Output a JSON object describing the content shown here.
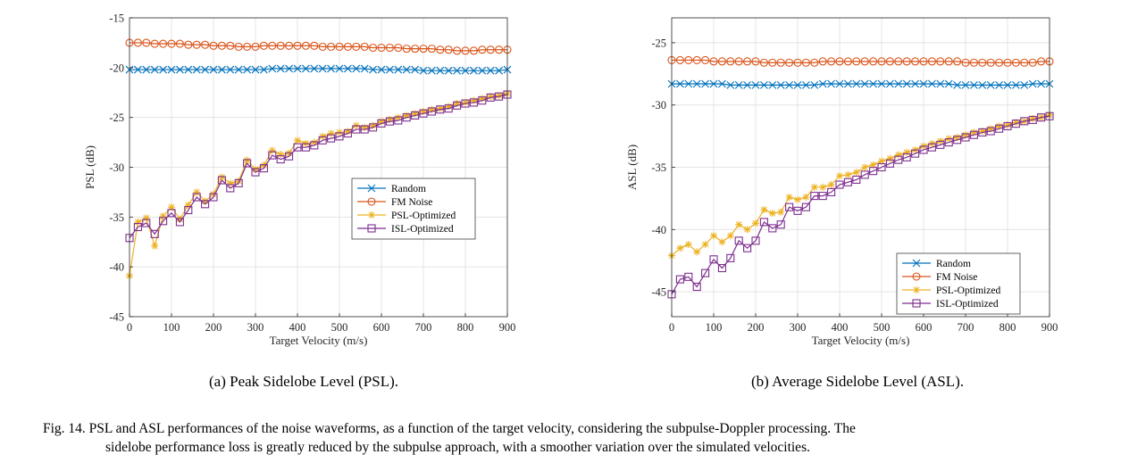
{
  "chart_data": [
    {
      "type": "line",
      "subcaption": "(a) Peak Sidelobe Level (PSL).",
      "xlabel": "Target Velocity (m/s)",
      "ylabel": "PSL (dB)",
      "xlim": [
        0,
        900
      ],
      "ylim": [
        -45,
        -15
      ],
      "xticks": [
        0,
        100,
        200,
        300,
        400,
        500,
        600,
        700,
        800,
        900
      ],
      "yticks": [
        -45,
        -40,
        -35,
        -30,
        -25,
        -20,
        -15
      ],
      "grid": true,
      "legend": "center-right",
      "x": [
        0,
        20,
        40,
        60,
        80,
        100,
        120,
        140,
        160,
        180,
        200,
        220,
        240,
        260,
        280,
        300,
        320,
        340,
        360,
        380,
        400,
        420,
        440,
        460,
        480,
        500,
        520,
        540,
        560,
        580,
        600,
        620,
        640,
        660,
        680,
        700,
        720,
        740,
        760,
        780,
        800,
        820,
        840,
        860,
        880,
        900
      ],
      "series": [
        {
          "name": "Random",
          "color": "#0072BD",
          "marker": "x",
          "values": [
            -20.2,
            -20.2,
            -20.2,
            -20.2,
            -20.2,
            -20.2,
            -20.2,
            -20.2,
            -20.2,
            -20.2,
            -20.2,
            -20.2,
            -20.2,
            -20.2,
            -20.2,
            -20.2,
            -20.2,
            -20.1,
            -20.1,
            -20.1,
            -20.1,
            -20.1,
            -20.1,
            -20.1,
            -20.1,
            -20.1,
            -20.1,
            -20.1,
            -20.1,
            -20.2,
            -20.2,
            -20.2,
            -20.2,
            -20.2,
            -20.2,
            -20.3,
            -20.3,
            -20.3,
            -20.3,
            -20.3,
            -20.3,
            -20.3,
            -20.3,
            -20.3,
            -20.3,
            -20.2
          ]
        },
        {
          "name": "FM Noise",
          "color": "#D95319",
          "marker": "o",
          "values": [
            -17.5,
            -17.5,
            -17.5,
            -17.6,
            -17.6,
            -17.6,
            -17.6,
            -17.7,
            -17.7,
            -17.7,
            -17.8,
            -17.8,
            -17.8,
            -17.9,
            -17.9,
            -17.9,
            -17.8,
            -17.8,
            -17.8,
            -17.8,
            -17.8,
            -17.8,
            -17.8,
            -17.9,
            -17.9,
            -17.9,
            -17.9,
            -17.9,
            -17.9,
            -18.0,
            -18.0,
            -18.0,
            -18.0,
            -18.1,
            -18.1,
            -18.1,
            -18.1,
            -18.2,
            -18.2,
            -18.3,
            -18.3,
            -18.3,
            -18.2,
            -18.2,
            -18.2,
            -18.2
          ]
        },
        {
          "name": "PSL-Optimized",
          "color": "#EDB120",
          "marker": "*",
          "values": [
            -40.9,
            -35.5,
            -35.1,
            -37.9,
            -34.9,
            -34.0,
            -35.2,
            -33.8,
            -32.5,
            -33.4,
            -32.7,
            -31.0,
            -31.6,
            -31.4,
            -29.3,
            -30.2,
            -29.8,
            -28.3,
            -28.7,
            -28.6,
            -27.3,
            -27.6,
            -27.5,
            -26.9,
            -26.6,
            -26.5,
            -26.4,
            -25.8,
            -26.0,
            -25.8,
            -25.4,
            -25.2,
            -25.0,
            -24.8,
            -24.6,
            -24.4,
            -24.2,
            -24.1,
            -23.9,
            -23.6,
            -23.5,
            -23.3,
            -23.1,
            -22.9,
            -22.8,
            -22.6
          ]
        },
        {
          "name": "ISL-Optimized",
          "color": "#7E2F8E",
          "marker": "s",
          "values": [
            -37.1,
            -36.0,
            -35.6,
            -36.7,
            -35.4,
            -34.6,
            -35.5,
            -34.3,
            -33.0,
            -33.7,
            -33.0,
            -31.3,
            -32.1,
            -31.6,
            -29.6,
            -30.5,
            -30.1,
            -28.8,
            -29.2,
            -28.9,
            -28.0,
            -28.0,
            -27.8,
            -27.3,
            -27.1,
            -26.9,
            -26.6,
            -26.2,
            -26.2,
            -26.0,
            -25.6,
            -25.4,
            -25.3,
            -25.0,
            -24.8,
            -24.6,
            -24.4,
            -24.2,
            -24.1,
            -23.8,
            -23.6,
            -23.5,
            -23.3,
            -23.0,
            -22.9,
            -22.7
          ]
        }
      ]
    },
    {
      "type": "line",
      "subcaption": "(b) Average Sidelobe Level (ASL).",
      "xlabel": "Target Velocity (m/s)",
      "ylabel": "ASL (dB)",
      "xlim": [
        0,
        900
      ],
      "ylim": [
        -47,
        -23
      ],
      "xticks": [
        0,
        100,
        200,
        300,
        400,
        500,
        600,
        700,
        800,
        900
      ],
      "yticks": [
        -45,
        -40,
        -35,
        -30,
        -25
      ],
      "grid": true,
      "legend": "bottom-right",
      "x": [
        0,
        20,
        40,
        60,
        80,
        100,
        120,
        140,
        160,
        180,
        200,
        220,
        240,
        260,
        280,
        300,
        320,
        340,
        360,
        380,
        400,
        420,
        440,
        460,
        480,
        500,
        520,
        540,
        560,
        580,
        600,
        620,
        640,
        660,
        680,
        700,
        720,
        740,
        760,
        780,
        800,
        820,
        840,
        860,
        880,
        900
      ],
      "series": [
        {
          "name": "Random",
          "color": "#0072BD",
          "marker": "x",
          "values": [
            -28.3,
            -28.3,
            -28.3,
            -28.3,
            -28.3,
            -28.3,
            -28.3,
            -28.4,
            -28.4,
            -28.4,
            -28.4,
            -28.4,
            -28.4,
            -28.4,
            -28.4,
            -28.4,
            -28.4,
            -28.4,
            -28.3,
            -28.3,
            -28.3,
            -28.3,
            -28.3,
            -28.3,
            -28.3,
            -28.3,
            -28.3,
            -28.3,
            -28.3,
            -28.3,
            -28.3,
            -28.3,
            -28.3,
            -28.3,
            -28.4,
            -28.4,
            -28.4,
            -28.4,
            -28.4,
            -28.4,
            -28.4,
            -28.4,
            -28.4,
            -28.3,
            -28.3,
            -28.3
          ]
        },
        {
          "name": "FM Noise",
          "color": "#D95319",
          "marker": "o",
          "values": [
            -26.4,
            -26.4,
            -26.4,
            -26.4,
            -26.4,
            -26.5,
            -26.5,
            -26.5,
            -26.5,
            -26.5,
            -26.5,
            -26.6,
            -26.6,
            -26.6,
            -26.6,
            -26.6,
            -26.6,
            -26.6,
            -26.5,
            -26.5,
            -26.5,
            -26.5,
            -26.5,
            -26.5,
            -26.5,
            -26.5,
            -26.5,
            -26.5,
            -26.5,
            -26.5,
            -26.5,
            -26.5,
            -26.5,
            -26.5,
            -26.5,
            -26.6,
            -26.6,
            -26.6,
            -26.6,
            -26.6,
            -26.6,
            -26.6,
            -26.6,
            -26.6,
            -26.5,
            -26.5
          ]
        },
        {
          "name": "PSL-Optimized",
          "color": "#EDB120",
          "marker": "*",
          "values": [
            -42.1,
            -41.5,
            -41.2,
            -41.8,
            -41.2,
            -40.5,
            -41.0,
            -40.5,
            -39.6,
            -40.0,
            -39.5,
            -38.4,
            -38.7,
            -38.6,
            -37.4,
            -37.6,
            -37.4,
            -36.6,
            -36.6,
            -36.4,
            -35.7,
            -35.6,
            -35.4,
            -35.0,
            -34.8,
            -34.5,
            -34.3,
            -34.0,
            -33.8,
            -33.6,
            -33.3,
            -33.1,
            -32.9,
            -32.7,
            -32.6,
            -32.4,
            -32.2,
            -32.1,
            -31.9,
            -31.7,
            -31.6,
            -31.4,
            -31.3,
            -31.1,
            -31.0,
            -30.8
          ]
        },
        {
          "name": "ISL-Optimized",
          "color": "#7E2F8E",
          "marker": "s",
          "values": [
            -45.2,
            -44.0,
            -43.8,
            -44.6,
            -43.5,
            -42.4,
            -43.1,
            -42.3,
            -40.9,
            -41.5,
            -40.9,
            -39.4,
            -39.9,
            -39.6,
            -38.2,
            -38.5,
            -38.2,
            -37.3,
            -37.3,
            -37.0,
            -36.4,
            -36.2,
            -36.0,
            -35.6,
            -35.3,
            -35.0,
            -34.7,
            -34.4,
            -34.2,
            -33.9,
            -33.6,
            -33.4,
            -33.2,
            -33.0,
            -32.8,
            -32.6,
            -32.4,
            -32.2,
            -32.1,
            -31.9,
            -31.7,
            -31.5,
            -31.3,
            -31.2,
            -31.0,
            -30.9
          ]
        }
      ]
    }
  ],
  "figure_caption": {
    "line1": "Fig. 14.   PSL and ASL performances of the noise waveforms, as a function of the target velocity, considering the subpulse-Doppler processing. The",
    "line2": "sidelobe performance loss is greatly reduced by the subpulse approach, with a smoother variation over the simulated velocities."
  }
}
